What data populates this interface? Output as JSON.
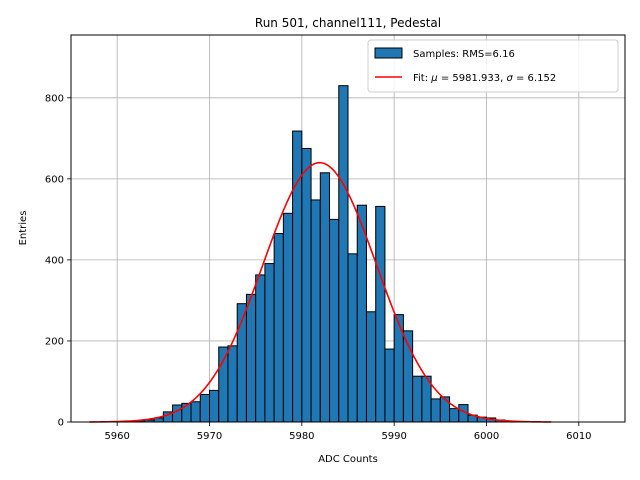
{
  "chart_data": {
    "type": "bar",
    "title": "Run 501, channel111, Pedestal",
    "xlabel": "ADC Counts",
    "ylabel": "Entries",
    "xlim": [
      5955,
      6015
    ],
    "ylim": [
      0,
      955
    ],
    "xticks": [
      5960,
      5970,
      5980,
      5990,
      6000,
      6010
    ],
    "yticks": [
      0,
      200,
      400,
      600,
      800
    ],
    "grid": true,
    "legend_position": "top-right",
    "series": [
      {
        "name": "Samples: RMS=6.16",
        "kind": "histogram",
        "color": "#1f77b4",
        "edge_color": "#000000",
        "bin_edges": [
          5957.0,
          5958.0,
          5959.0,
          5960.0,
          5961.0,
          5962.0,
          5963.0,
          5964.0,
          5965.0,
          5966.0,
          5967.0,
          5968.0,
          5969.0,
          5970.0,
          5971.0,
          5972.0,
          5973.0,
          5974.0,
          5975.0,
          5976.0,
          5977.0,
          5978.0,
          5979.0,
          5980.0,
          5981.0,
          5982.0,
          5983.0,
          5984.0,
          5985.0,
          5986.0,
          5987.0,
          5988.0,
          5989.0,
          5990.0,
          5991.0,
          5992.0,
          5993.0,
          5994.0,
          5995.0,
          5996.0,
          5997.0,
          5998.0,
          5999.0,
          6000.0,
          6001.0,
          6002.0,
          6003.0,
          6004.0,
          6005.0,
          6006.0,
          6007.0
        ],
        "counts": [
          0,
          0,
          0,
          0,
          1,
          3,
          5,
          10,
          25,
          42,
          46,
          50,
          68,
          78,
          185,
          188,
          292,
          315,
          363,
          391,
          465,
          515,
          718,
          675,
          548,
          615,
          500,
          830,
          415,
          535,
          272,
          532,
          180,
          265,
          225,
          113,
          113,
          57,
          62,
          33,
          43,
          17,
          12,
          10,
          5,
          2,
          1,
          0,
          0,
          0
        ]
      },
      {
        "name": "Fit: μ = 5981.933, σ = 6.152",
        "kind": "line",
        "color": "#ff0000",
        "mu": 5981.933,
        "sigma": 6.152,
        "peak": 640,
        "x_range": [
          5957,
          6007
        ]
      }
    ]
  }
}
